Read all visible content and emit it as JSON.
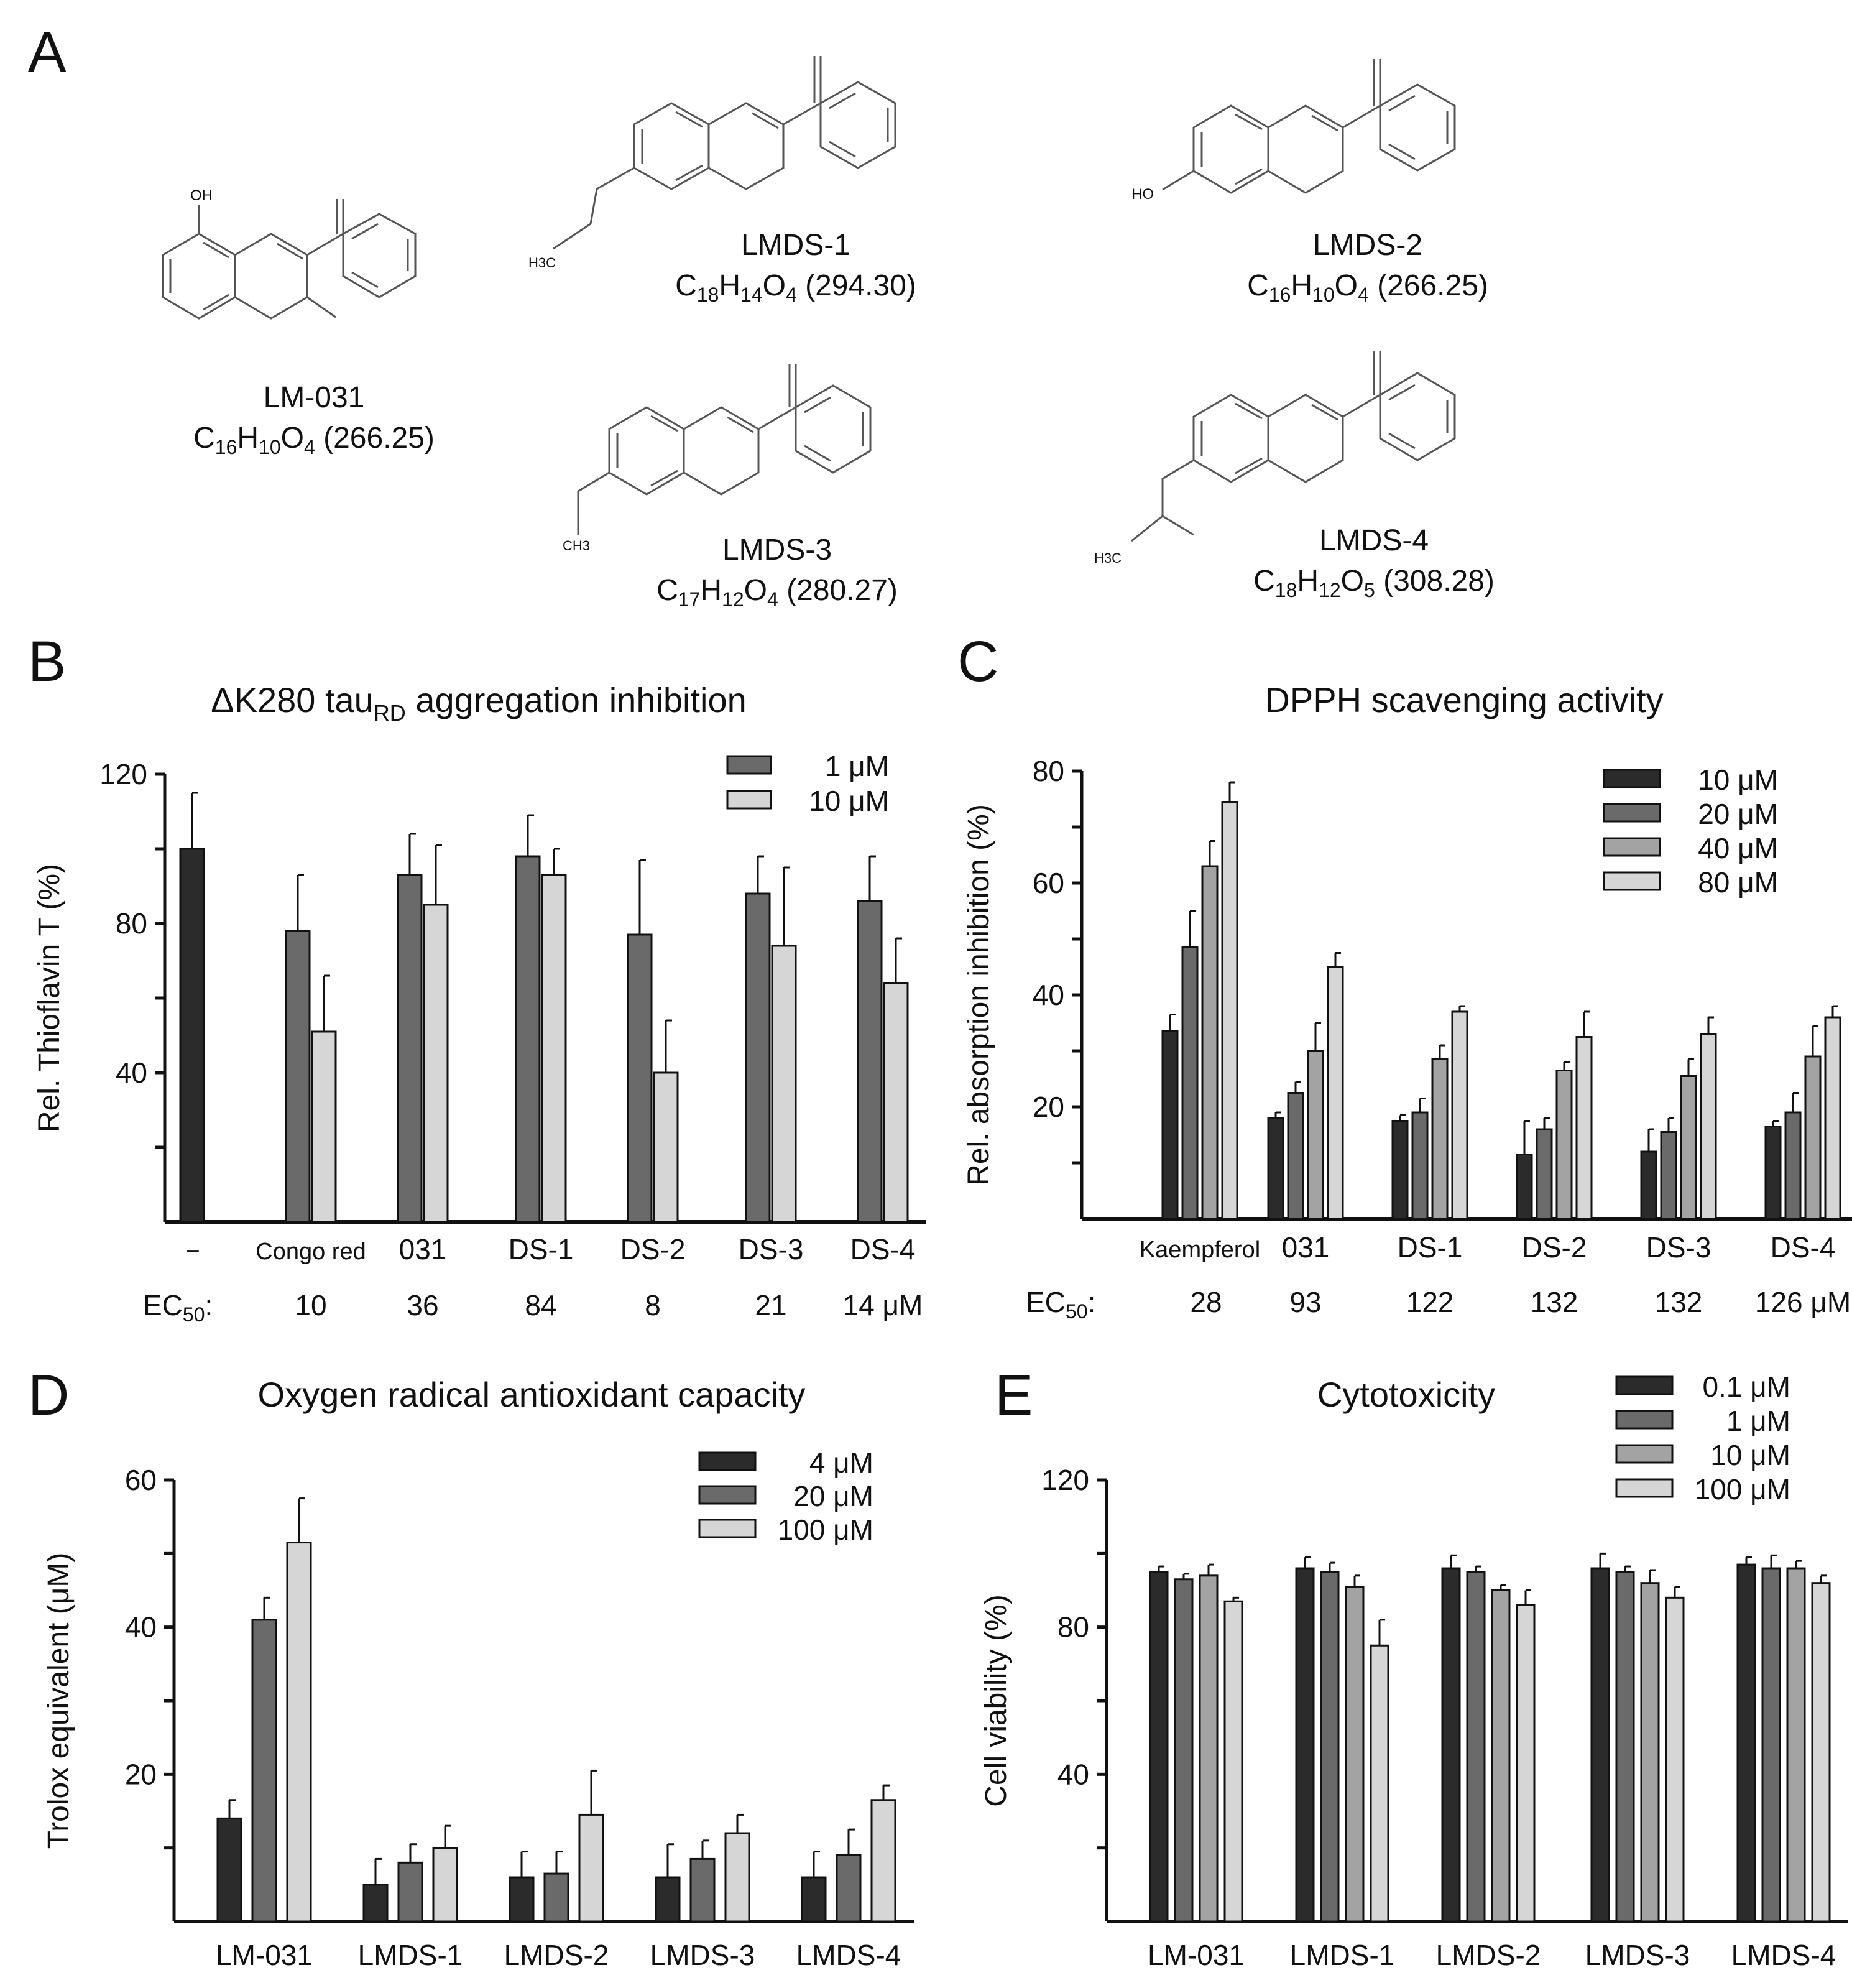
{
  "colors": {
    "dark": "#2b2b2b",
    "mid": "#6a6a6a",
    "light": "#a3a3a3",
    "lighter": "#d6d6d6",
    "axis": "#111111"
  },
  "panel_letters": {
    "a": "A",
    "b": "B",
    "c": "C",
    "d": "D",
    "e": "E"
  },
  "structures": [
    {
      "name": "LM-031",
      "formula": {
        "c": "16",
        "h": "10",
        "o": "4",
        "mw": "(266.25)"
      },
      "substituent": "OH"
    },
    {
      "name": "LMDS-1",
      "formula": {
        "c": "18",
        "h": "14",
        "o": "4",
        "mw": "(294.30)"
      },
      "substituent": "H3C"
    },
    {
      "name": "LMDS-2",
      "formula": {
        "c": "16",
        "h": "10",
        "o": "4",
        "mw": "(266.25)"
      },
      "substituent": "HO"
    },
    {
      "name": "LMDS-3",
      "formula": {
        "c": "17",
        "h": "12",
        "o": "4",
        "mw": "(280.27)"
      },
      "substituent": "CH3"
    },
    {
      "name": "LMDS-4",
      "formula": {
        "c": "18",
        "h": "12",
        "o": "5",
        "mw": "(308.28)"
      },
      "substituent": "H3C"
    }
  ],
  "chart_data": [
    {
      "panel": "B",
      "type": "bar",
      "title": "ΔK280 tau",
      "title_sub": "RD",
      "title_rest": " aggregation inhibition",
      "ylabel": "Rel. Thioflavin T (%)",
      "ylim": [
        0,
        120
      ],
      "yticks": [
        40,
        80,
        120
      ],
      "categories": [
        "−",
        "Congo red",
        "031",
        "DS-1",
        "DS-2",
        "DS-3",
        "DS-4"
      ],
      "control": {
        "value": 100,
        "error": 15
      },
      "series": [
        {
          "name": "1 μM",
          "color": "mid",
          "values": [
            null,
            78,
            93,
            98,
            77,
            88,
            86
          ],
          "errors": [
            null,
            15,
            11,
            11,
            20,
            10,
            12
          ]
        },
        {
          "name": "10 μM",
          "color": "lighter",
          "values": [
            null,
            51,
            85,
            93,
            40,
            74,
            64
          ],
          "errors": [
            null,
            15,
            16,
            7,
            14,
            21,
            12
          ]
        }
      ],
      "ec50_label": "EC",
      "ec50_sub": "50",
      "ec50_values": [
        "10",
        "36",
        "84",
        "8",
        "21",
        "14 μM"
      ]
    },
    {
      "panel": "C",
      "type": "bar",
      "title": "DPPH scavenging activity",
      "ylabel": "Rel. absorption inhibition (%)",
      "ylim": [
        0,
        80
      ],
      "yticks": [
        20,
        40,
        60,
        80
      ],
      "categories": [
        "Kaempferol",
        "031",
        "DS-1",
        "DS-2",
        "DS-3",
        "DS-4"
      ],
      "series": [
        {
          "name": "10 μM",
          "color": "dark",
          "values": [
            33.5,
            18,
            17.5,
            11.5,
            12,
            16.5
          ],
          "errors": [
            3,
            1,
            1,
            6,
            4,
            1
          ]
        },
        {
          "name": "20 μM",
          "color": "mid",
          "values": [
            48.5,
            22.5,
            19,
            16,
            15.5,
            19
          ],
          "errors": [
            6.5,
            2,
            2.5,
            2,
            2.5,
            3.5
          ]
        },
        {
          "name": "40 μM",
          "color": "light",
          "values": [
            63,
            30,
            28.5,
            26.5,
            25.5,
            29
          ],
          "errors": [
            4.5,
            5,
            2.5,
            1.5,
            3,
            5.5
          ]
        },
        {
          "name": "80 μM",
          "color": "lighter",
          "values": [
            74.5,
            45,
            37,
            32.5,
            33,
            36
          ],
          "errors": [
            3.5,
            2.5,
            1,
            4.5,
            3,
            2
          ]
        }
      ],
      "ec50_label": "EC",
      "ec50_sub": "50",
      "ec50_values": [
        "28",
        "93",
        "122",
        "132",
        "132",
        "126 μM"
      ]
    },
    {
      "panel": "D",
      "type": "bar",
      "title": "Oxygen radical antioxidant capacity",
      "ylabel": "Trolox equivalent (μM)",
      "ylim": [
        0,
        60
      ],
      "yticks": [
        20,
        40,
        60
      ],
      "categories": [
        "LM-031",
        "LMDS-1",
        "LMDS-2",
        "LMDS-3",
        "LMDS-4"
      ],
      "series": [
        {
          "name": "4 μM",
          "color": "dark",
          "values": [
            14,
            5,
            6,
            6,
            6
          ],
          "errors": [
            2.5,
            3.5,
            3.5,
            4.5,
            3.5
          ]
        },
        {
          "name": "20 μM",
          "color": "mid",
          "values": [
            41,
            8,
            6.5,
            8.5,
            9
          ],
          "errors": [
            3,
            2.5,
            3,
            2.5,
            3.5
          ]
        },
        {
          "name": "100 μM",
          "color": "lighter",
          "values": [
            51.5,
            10,
            14.5,
            12,
            16.5
          ],
          "errors": [
            6,
            3,
            6,
            2.5,
            2
          ]
        }
      ]
    },
    {
      "panel": "E",
      "type": "bar",
      "title": "Cytotoxicity",
      "ylabel": "Cell viability (%)",
      "ylim": [
        0,
        120
      ],
      "yticks": [
        40,
        80,
        120
      ],
      "categories": [
        "LM-031",
        "LMDS-1",
        "LMDS-2",
        "LMDS-3",
        "LMDS-4"
      ],
      "series": [
        {
          "name": "0.1 μM",
          "color": "dark",
          "values": [
            95,
            96,
            96,
            96,
            97
          ],
          "errors": [
            1.5,
            3,
            3.5,
            4,
            2
          ]
        },
        {
          "name": "1 μM",
          "color": "mid",
          "values": [
            93,
            95,
            95,
            95,
            96
          ],
          "errors": [
            1.5,
            2.5,
            1.5,
            1.5,
            3.5
          ]
        },
        {
          "name": "10 μM",
          "color": "light",
          "values": [
            94,
            91,
            90,
            92,
            96
          ],
          "errors": [
            3,
            3,
            1.5,
            3.5,
            2
          ]
        },
        {
          "name": "100 μM",
          "color": "lighter",
          "values": [
            87,
            75,
            86,
            88,
            92
          ],
          "errors": [
            1,
            7,
            4,
            3,
            2
          ]
        }
      ]
    }
  ]
}
